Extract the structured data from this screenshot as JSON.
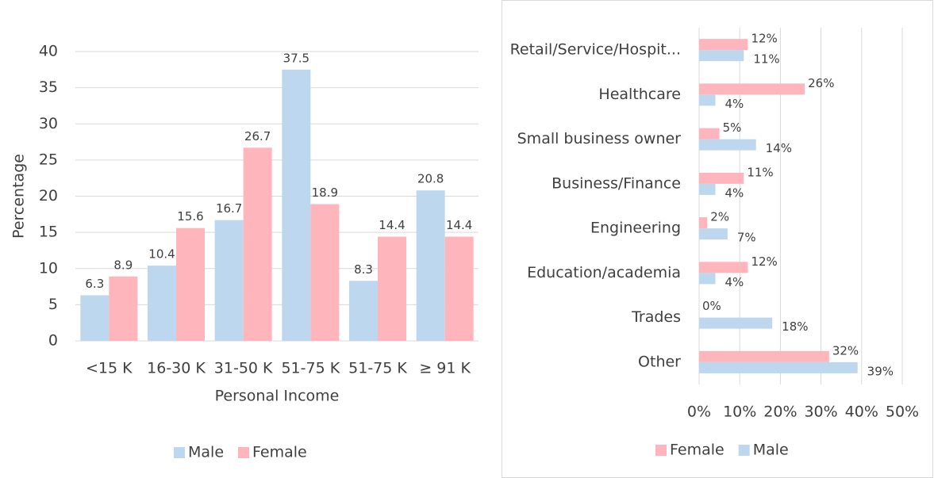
{
  "chart_data": [
    {
      "type": "bar",
      "xlabel": "Personal Income",
      "ylabel": "Percentage",
      "categories": [
        "<15 K",
        "16-30 K",
        "31-50 K",
        "51-75 K",
        "51-75 K",
        "≥ 91 K"
      ],
      "series": [
        {
          "name": "Male",
          "color": "#bdd7ee",
          "values": [
            6.3,
            10.4,
            16.7,
            37.5,
            8.3,
            20.8
          ]
        },
        {
          "name": "Female",
          "color": "#ffb5bc",
          "values": [
            8.9,
            15.6,
            26.7,
            18.9,
            14.4,
            14.4
          ]
        }
      ],
      "ylim": [
        0,
        40
      ],
      "yticks": [
        0,
        5,
        10,
        15,
        20,
        25,
        30,
        35,
        40
      ],
      "grid": true,
      "legend": "bottom"
    },
    {
      "type": "barh",
      "categories": [
        "Retail/Service/Hospit...",
        "Healthcare",
        "Small business owner",
        "Business/Finance",
        "Engineering",
        "Education/academia",
        "Trades",
        "Other"
      ],
      "series": [
        {
          "name": "Female",
          "color": "#ffb5bc",
          "values": [
            12,
            26,
            5,
            11,
            2,
            12,
            0,
            32
          ],
          "value_labels": [
            "12%",
            "26%",
            "5%",
            "11%",
            "2%",
            "12%",
            "0%",
            "32%"
          ]
        },
        {
          "name": "Male",
          "color": "#bdd7ee",
          "values": [
            11,
            4,
            14,
            4,
            7,
            4,
            18,
            39
          ],
          "value_labels": [
            "11%",
            "4%",
            "14%",
            "4%",
            "7%",
            "4%",
            "18%",
            "39%"
          ]
        }
      ],
      "xlim": [
        0,
        50
      ],
      "xticks": [
        {
          "value": 0,
          "label": "0%"
        },
        {
          "value": 10,
          "label": "10%"
        },
        {
          "value": 20,
          "label": "20%"
        },
        {
          "value": 30,
          "label": "30%"
        },
        {
          "value": 40,
          "label": "40%"
        },
        {
          "value": 50,
          "label": "50%"
        }
      ],
      "grid": true,
      "legend": "bottom"
    }
  ]
}
